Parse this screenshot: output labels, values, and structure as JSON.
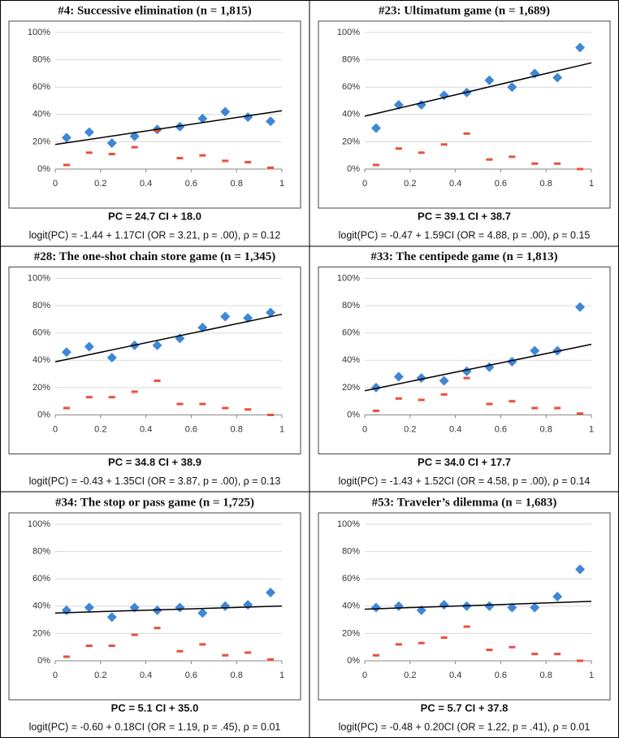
{
  "chart_data": [
    {
      "type": "scatter",
      "title": "#4: Successive elimination (n = 1,815)",
      "equation": "PC = 24.7 CI + 18.0",
      "logit": "logit(PC) = -1.44 + 1.17CI (OR = 3.21, p = .00), ρ = 0.12",
      "x": [
        0.05,
        0.15,
        0.25,
        0.35,
        0.45,
        0.55,
        0.65,
        0.75,
        0.85,
        0.95
      ],
      "series": [
        {
          "color": "#3f86d6",
          "marker": "diamond",
          "values": [
            23,
            27,
            19,
            24,
            29,
            31,
            37,
            42,
            38,
            35
          ]
        },
        {
          "color": "#e8503c",
          "marker": "dash",
          "values": [
            3,
            12,
            11,
            16,
            28,
            8,
            10,
            6,
            5,
            1
          ]
        }
      ],
      "trend": {
        "color": "#000000",
        "x": [
          0,
          1
        ],
        "values": [
          18.0,
          42.7
        ]
      },
      "xlim": [
        0,
        1
      ],
      "xticks": [
        0,
        0.2,
        0.4,
        0.6,
        0.8,
        1
      ],
      "ylim": [
        0,
        100
      ],
      "yticks": [
        {
          "value": 0,
          "label": "0%"
        },
        {
          "value": 20,
          "label": "20%"
        },
        {
          "value": 40,
          "label": "40%"
        },
        {
          "value": 60,
          "label": "60%"
        },
        {
          "value": 80,
          "label": "80%"
        },
        {
          "value": 100,
          "label": "100%"
        }
      ]
    },
    {
      "type": "scatter",
      "title": "#23: Ultimatum game (n = 1,689)",
      "equation": "PC = 39.1 CI + 38.7",
      "logit": "logit(PC) = -0.47 + 1.59CI (OR = 4.88, p = .00), ρ = 0.15",
      "x": [
        0.05,
        0.15,
        0.25,
        0.35,
        0.45,
        0.55,
        0.65,
        0.75,
        0.85,
        0.95
      ],
      "series": [
        {
          "color": "#3f86d6",
          "marker": "diamond",
          "values": [
            30,
            47,
            47,
            54,
            56,
            65,
            60,
            70,
            67,
            89
          ]
        },
        {
          "color": "#e8503c",
          "marker": "dash",
          "values": [
            3,
            15,
            12,
            18,
            26,
            7,
            9,
            4,
            4,
            0
          ]
        }
      ],
      "trend": {
        "color": "#000000",
        "x": [
          0,
          1
        ],
        "values": [
          38.7,
          77.8
        ]
      },
      "xlim": [
        0,
        1
      ],
      "xticks": [
        0,
        0.2,
        0.4,
        0.6,
        0.8,
        1
      ],
      "ylim": [
        0,
        100
      ],
      "yticks": [
        {
          "value": 0,
          "label": "0%"
        },
        {
          "value": 20,
          "label": "20%"
        },
        {
          "value": 40,
          "label": "40%"
        },
        {
          "value": 60,
          "label": "60%"
        },
        {
          "value": 80,
          "label": "80%"
        },
        {
          "value": 100,
          "label": "100%"
        }
      ]
    },
    {
      "type": "scatter",
      "title": "#28: The one-shot chain store game (n = 1,345)",
      "equation": "PC = 34.8 CI + 38.9",
      "logit": "logit(PC) = -0.43 + 1.35CI (OR = 3.87, p = .00), ρ = 0.13",
      "x": [
        0.05,
        0.15,
        0.25,
        0.35,
        0.45,
        0.55,
        0.65,
        0.75,
        0.85,
        0.95
      ],
      "series": [
        {
          "color": "#3f86d6",
          "marker": "diamond",
          "values": [
            46,
            50,
            42,
            51,
            51,
            56,
            64,
            72,
            71,
            75
          ]
        },
        {
          "color": "#e8503c",
          "marker": "dash",
          "values": [
            5,
            13,
            13,
            17,
            25,
            8,
            8,
            5,
            4,
            0
          ]
        }
      ],
      "trend": {
        "color": "#000000",
        "x": [
          0,
          1
        ],
        "values": [
          38.9,
          73.7
        ]
      },
      "xlim": [
        0,
        1
      ],
      "xticks": [
        0,
        0.2,
        0.4,
        0.6,
        0.8,
        1
      ],
      "ylim": [
        0,
        100
      ],
      "yticks": [
        {
          "value": 0,
          "label": "0%"
        },
        {
          "value": 20,
          "label": "20%"
        },
        {
          "value": 40,
          "label": "40%"
        },
        {
          "value": 60,
          "label": "60%"
        },
        {
          "value": 80,
          "label": "80%"
        },
        {
          "value": 100,
          "label": "100%"
        }
      ]
    },
    {
      "type": "scatter",
      "title": "#33: The centipede game (n = 1,813)",
      "equation": "PC = 34.0 CI + 17.7",
      "logit": "logit(PC) = -1.43 + 1.52CI (OR = 4.58, p = .00), ρ = 0.14",
      "x": [
        0.05,
        0.15,
        0.25,
        0.35,
        0.45,
        0.55,
        0.65,
        0.75,
        0.85,
        0.95
      ],
      "series": [
        {
          "color": "#3f86d6",
          "marker": "diamond",
          "values": [
            20,
            28,
            27,
            25,
            32,
            35,
            39,
            47,
            47,
            79
          ]
        },
        {
          "color": "#e8503c",
          "marker": "dash",
          "values": [
            3,
            12,
            11,
            15,
            27,
            8,
            10,
            5,
            5,
            1
          ]
        }
      ],
      "trend": {
        "color": "#000000",
        "x": [
          0,
          1
        ],
        "values": [
          17.7,
          51.7
        ]
      },
      "xlim": [
        0,
        1
      ],
      "xticks": [
        0,
        0.2,
        0.4,
        0.6,
        0.8,
        1
      ],
      "ylim": [
        0,
        100
      ],
      "yticks": [
        {
          "value": 0,
          "label": "0%"
        },
        {
          "value": 20,
          "label": "20%"
        },
        {
          "value": 40,
          "label": "40%"
        },
        {
          "value": 60,
          "label": "60%"
        },
        {
          "value": 80,
          "label": "80%"
        },
        {
          "value": 100,
          "label": "100%"
        }
      ]
    },
    {
      "type": "scatter",
      "title": "#34: The stop or pass game (n = 1,725)",
      "equation": "PC = 5.1 CI + 35.0",
      "logit": "logit(PC) = -0.60 + 0.18CI (OR = 1.19, p = .45), ρ = 0.01",
      "x": [
        0.05,
        0.15,
        0.25,
        0.35,
        0.45,
        0.55,
        0.65,
        0.75,
        0.85,
        0.95
      ],
      "series": [
        {
          "color": "#3f86d6",
          "marker": "diamond",
          "values": [
            37,
            39,
            32,
            39,
            37,
            39,
            35,
            40,
            41,
            50
          ]
        },
        {
          "color": "#e8503c",
          "marker": "dash",
          "values": [
            3,
            11,
            11,
            19,
            24,
            7,
            12,
            4,
            6,
            1
          ]
        }
      ],
      "trend": {
        "color": "#000000",
        "x": [
          0,
          1
        ],
        "values": [
          35.0,
          40.1
        ]
      },
      "xlim": [
        0,
        1
      ],
      "xticks": [
        0,
        0.2,
        0.4,
        0.6,
        0.8,
        1
      ],
      "ylim": [
        0,
        100
      ],
      "yticks": [
        {
          "value": 0,
          "label": "0%"
        },
        {
          "value": 20,
          "label": "20%"
        },
        {
          "value": 40,
          "label": "40%"
        },
        {
          "value": 60,
          "label": "60%"
        },
        {
          "value": 80,
          "label": "80%"
        },
        {
          "value": 100,
          "label": "100%"
        }
      ]
    },
    {
      "type": "scatter",
      "title": "#53: Traveler’s dilemma (n = 1,683)",
      "equation": "PC = 5.7 CI + 37.8",
      "logit": "logit(PC) = -0.48 + 0.20CI (OR = 1.22, p = .41), ρ = 0.01",
      "x": [
        0.05,
        0.15,
        0.25,
        0.35,
        0.45,
        0.55,
        0.65,
        0.75,
        0.85,
        0.95
      ],
      "series": [
        {
          "color": "#3f86d6",
          "marker": "diamond",
          "values": [
            39,
            40,
            37,
            41,
            40,
            40,
            39,
            39,
            47,
            67
          ]
        },
        {
          "color": "#e8503c",
          "marker": "dash",
          "values": [
            4,
            12,
            13,
            17,
            25,
            8,
            10,
            5,
            5,
            0
          ]
        }
      ],
      "trend": {
        "color": "#000000",
        "x": [
          0,
          1
        ],
        "values": [
          37.8,
          43.5
        ]
      },
      "xlim": [
        0,
        1
      ],
      "xticks": [
        0,
        0.2,
        0.4,
        0.6,
        0.8,
        1
      ],
      "ylim": [
        0,
        100
      ],
      "yticks": [
        {
          "value": 0,
          "label": "0%"
        },
        {
          "value": 20,
          "label": "20%"
        },
        {
          "value": 40,
          "label": "40%"
        },
        {
          "value": 60,
          "label": "60%"
        },
        {
          "value": 80,
          "label": "80%"
        },
        {
          "value": 100,
          "label": "100%"
        }
      ]
    }
  ]
}
